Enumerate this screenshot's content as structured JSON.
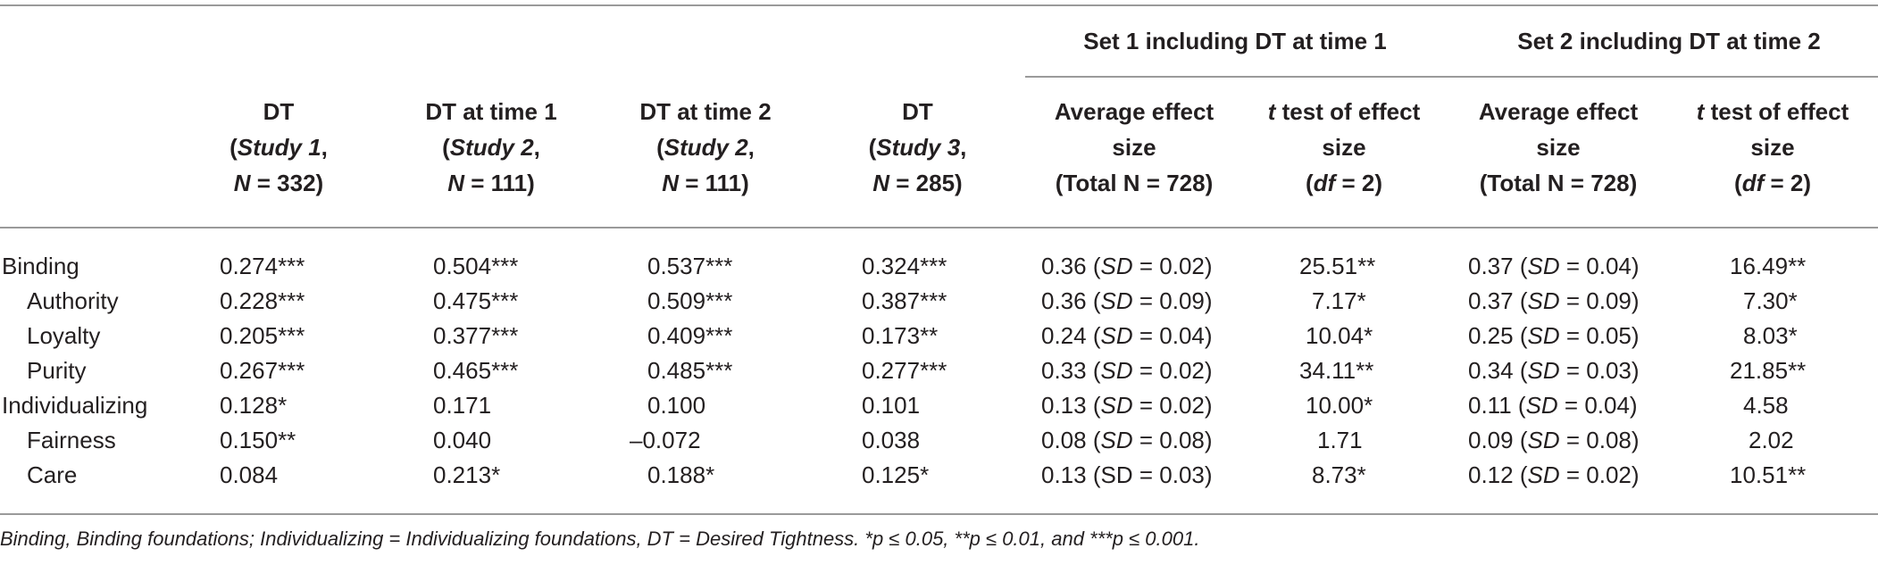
{
  "table": {
    "group_headers": [
      {
        "label": "Set 1 including DT at time 1"
      },
      {
        "label": "Set 2 including DT at time 2"
      }
    ],
    "columns": [
      {
        "top": "DT",
        "mid_a": "(",
        "mid_b": "Study 1",
        "mid_c": ",",
        "bot_a": "N",
        "bot_b": " = 332)"
      },
      {
        "top": "DT at time 1",
        "mid_a": "(",
        "mid_b": "Study 2",
        "mid_c": ",",
        "bot_a": "N",
        "bot_b": " = 111)"
      },
      {
        "top": "DT at time 2",
        "mid_a": "(",
        "mid_b": "Study 2",
        "mid_c": ",",
        "bot_a": "N",
        "bot_b": " = 111)"
      },
      {
        "top": "DT",
        "mid_a": "(",
        "mid_b": "Study 3",
        "mid_c": ",",
        "bot_a": "N",
        "bot_b": " = 285)"
      },
      {
        "top": "Average effect",
        "mid": "size",
        "bot": "(Total N = 728)"
      },
      {
        "top_a": "t",
        "top_b": " test of effect",
        "mid": "size",
        "bot_a": "(",
        "bot_b": "df",
        "bot_c": " = 2)"
      },
      {
        "top": "Average effect",
        "mid": "size",
        "bot": "(Total N = 728)"
      },
      {
        "top_a": "t",
        "top_b": " test of effect",
        "mid": "size",
        "bot_a": "(",
        "bot_b": "df",
        "bot_c": " = 2)"
      }
    ],
    "rows": [
      {
        "label": "Binding",
        "c1": "0.274***",
        "c2": "0.504***",
        "c3": "0.537***",
        "c4": "0.324***",
        "c5a": "0.36 (",
        "c5b": "SD",
        "c5c": " = 0.02)",
        "c6": "25.51**",
        "c7a": "0.37 (",
        "c7b": "SD",
        "c7c": " = 0.04)",
        "c8": "16.49**"
      },
      {
        "label": "Authority",
        "c1": "0.228***",
        "c2": "0.475***",
        "c3": "0.509***",
        "c4": "0.387***",
        "c5a": "0.36 (",
        "c5b": "SD",
        "c5c": " = 0.09)",
        "c6": "7.17*",
        "c7a": "0.37 (",
        "c7b": "SD",
        "c7c": " = 0.09)",
        "c8": "7.30*"
      },
      {
        "label": "Loyalty",
        "c1": "0.205***",
        "c2": "0.377***",
        "c3": "0.409***",
        "c4": "0.173**",
        "c5a": "0.24 (",
        "c5b": "SD",
        "c5c": " = 0.04)",
        "c6": "10.04*",
        "c7a": "0.25 (",
        "c7b": "SD",
        "c7c": " = 0.05)",
        "c8": "8.03*"
      },
      {
        "label": "Purity",
        "c1": "0.267***",
        "c2": "0.465***",
        "c3": "0.485***",
        "c4": "0.277***",
        "c5a": "0.33 (",
        "c5b": "SD",
        "c5c": " = 0.02)",
        "c6": "34.11**",
        "c7a": "0.34 (",
        "c7b": "SD",
        "c7c": " = 0.03)",
        "c8": "21.85**"
      },
      {
        "label": "Individualizing",
        "c1": "0.128*",
        "c2": "0.171",
        "c3": "0.100",
        "c4": "0.101",
        "c5a": "0.13 (",
        "c5b": "SD",
        "c5c": " = 0.02)",
        "c6": "10.00*",
        "c7a": "0.11 (",
        "c7b": "SD",
        "c7c": " = 0.04)",
        "c8": "4.58"
      },
      {
        "label": "Fairness",
        "c1": "0.150**",
        "c2": "0.040",
        "c3": "–0.072",
        "c4": "0.038",
        "c5a": "0.08 (",
        "c5b": "SD",
        "c5c": " = 0.08)",
        "c6": "1.71",
        "c7a": "0.09 (",
        "c7b": "SD",
        "c7c": " = 0.08)",
        "c8": "2.02"
      },
      {
        "label": "Care",
        "c1": "0.084",
        "c2": "0.213*",
        "c3": "0.188*",
        "c4": "0.125*",
        "c5a": "0.13 (",
        "c5b": "SD",
        "c5c": " = 0.03)",
        "c6": "8.73*",
        "c7a": "0.12 (",
        "c7b": "SD",
        "c7c": " = 0.02)",
        "c8": "10.51**"
      }
    ],
    "footnote": "Binding, Binding foundations; Individualizing = Individualizing foundations, DT = Desired Tightness. *p ≤ 0.05, **p ≤ 0.01, and ***p ≤ 0.001."
  }
}
